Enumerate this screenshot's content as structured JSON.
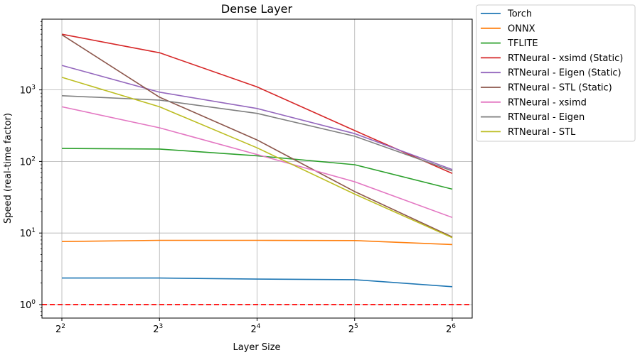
{
  "chart_data": {
    "type": "line",
    "title": "Dense Layer",
    "xlabel": "Layer Size",
    "ylabel": "Speed (real-time factor)",
    "x": [
      4,
      8,
      16,
      32,
      64
    ],
    "xscale": "log2",
    "yscale": "log10",
    "x_ticks": [
      {
        "base": "2",
        "exp": "2"
      },
      {
        "base": "2",
        "exp": "3"
      },
      {
        "base": "2",
        "exp": "4"
      },
      {
        "base": "2",
        "exp": "5"
      },
      {
        "base": "2",
        "exp": "6"
      }
    ],
    "y_ticks": [
      {
        "value": 1,
        "base": "10",
        "exp": "0"
      },
      {
        "value": 10,
        "base": "10",
        "exp": "1"
      },
      {
        "value": 100,
        "base": "10",
        "exp": "2"
      },
      {
        "value": 1000,
        "base": "10",
        "exp": "3"
      }
    ],
    "grid": true,
    "legend_position": "outside-right-top",
    "reference_line": {
      "y": 1,
      "color": "#ff0000",
      "style": "dashed"
    },
    "series": [
      {
        "name": "Torch",
        "color": "#1f77b4",
        "values": [
          2.35,
          2.35,
          2.27,
          2.23,
          1.78
        ]
      },
      {
        "name": "ONNX",
        "color": "#ff7f0e",
        "values": [
          7.6,
          7.9,
          7.9,
          7.85,
          6.9
        ]
      },
      {
        "name": "TFLITE",
        "color": "#2ca02c",
        "values": [
          152,
          149,
          120,
          90,
          41
        ]
      },
      {
        "name": "RTNeural - xsimd (Static)",
        "color": "#d62728",
        "values": [
          6000,
          3300,
          1100,
          270,
          68
        ]
      },
      {
        "name": "RTNeural - Eigen (Static)",
        "color": "#9467bd",
        "values": [
          2200,
          930,
          550,
          245,
          77
        ]
      },
      {
        "name": "RTNeural - STL (Static)",
        "color": "#8c564b",
        "values": [
          5900,
          790,
          200,
          38,
          8.8
        ]
      },
      {
        "name": "RTNeural - xsimd",
        "color": "#e377c2",
        "values": [
          580,
          295,
          125,
          52,
          16.5
        ]
      },
      {
        "name": "RTNeural - Eigen",
        "color": "#7f7f7f",
        "values": [
          830,
          720,
          470,
          225,
          74
        ]
      },
      {
        "name": "RTNeural - STL",
        "color": "#bcbd22",
        "values": [
          1500,
          580,
          155,
          35,
          8.6
        ]
      }
    ]
  }
}
